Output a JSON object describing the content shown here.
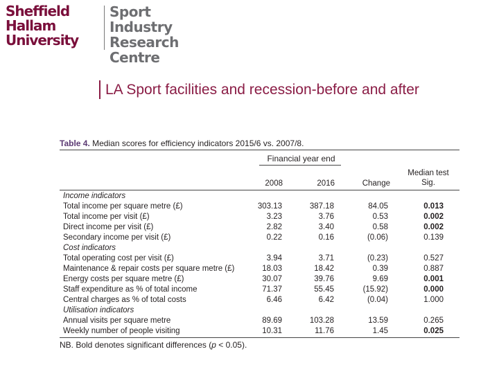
{
  "logo": {
    "university": [
      "Sheffield",
      "Hallam",
      "University"
    ],
    "centre": [
      "Sport Industry",
      "Research",
      "Centre"
    ]
  },
  "slide_title": "LA Sport facilities and recession-before and after",
  "table": {
    "caption_label": "Table 4.",
    "caption_text": "Median scores for efficiency indicators 2015/6 vs. 2007/8.",
    "group_header": "Financial year end",
    "columns": [
      "2008",
      "2016",
      "Change",
      "Median test Sig."
    ],
    "rows": [
      {
        "type": "section",
        "label": "Income indicators"
      },
      {
        "type": "data",
        "label": "Total income per square metre (£)",
        "v2008": "303.13",
        "v2016": "387.18",
        "change": "84.05",
        "sig": "0.013",
        "bold": true
      },
      {
        "type": "data",
        "label": "Total income per visit (£)",
        "v2008": "3.23",
        "v2016": "3.76",
        "change": "0.53",
        "sig": "0.002",
        "bold": true
      },
      {
        "type": "data",
        "label": "Direct income per visit (£)",
        "v2008": "2.82",
        "v2016": "3.40",
        "change": "0.58",
        "sig": "0.002",
        "bold": true
      },
      {
        "type": "data",
        "label": "Secondary income per visit (£)",
        "v2008": "0.22",
        "v2016": "0.16",
        "change": "(0.06)",
        "sig": "0.139",
        "bold": false
      },
      {
        "type": "section",
        "label": "Cost indicators"
      },
      {
        "type": "data",
        "label": "Total operating cost per visit (£)",
        "v2008": "3.94",
        "v2016": "3.71",
        "change": "(0.23)",
        "sig": "0.527",
        "bold": false
      },
      {
        "type": "data",
        "label": "Maintenance & repair costs per square metre (£)",
        "v2008": "18.03",
        "v2016": "18.42",
        "change": "0.39",
        "sig": "0.887",
        "bold": false
      },
      {
        "type": "data",
        "label": "Energy costs per square metre (£)",
        "v2008": "30.07",
        "v2016": "39.76",
        "change": "9.69",
        "sig": "0.001",
        "bold": true
      },
      {
        "type": "data",
        "label": "Staff expenditure as % of total income",
        "v2008": "71.37",
        "v2016": "55.45",
        "change": "(15.92)",
        "sig": "0.000",
        "bold": true
      },
      {
        "type": "data",
        "label": "Central charges as % of total costs",
        "v2008": "6.46",
        "v2016": "6.42",
        "change": "(0.04)",
        "sig": "1.000",
        "bold": false
      },
      {
        "type": "section",
        "label": "Utilisation indicators"
      },
      {
        "type": "data",
        "label": "Annual visits per square metre",
        "v2008": "89.69",
        "v2016": "103.28",
        "change": "13.59",
        "sig": "0.265",
        "bold": false
      },
      {
        "type": "data",
        "label": "Weekly number of people visiting",
        "v2008": "10.31",
        "v2016": "11.76",
        "change": "1.45",
        "sig": "0.025",
        "bold": true
      }
    ],
    "note": "NB. Bold denotes significant differences (p < 0.05)."
  }
}
